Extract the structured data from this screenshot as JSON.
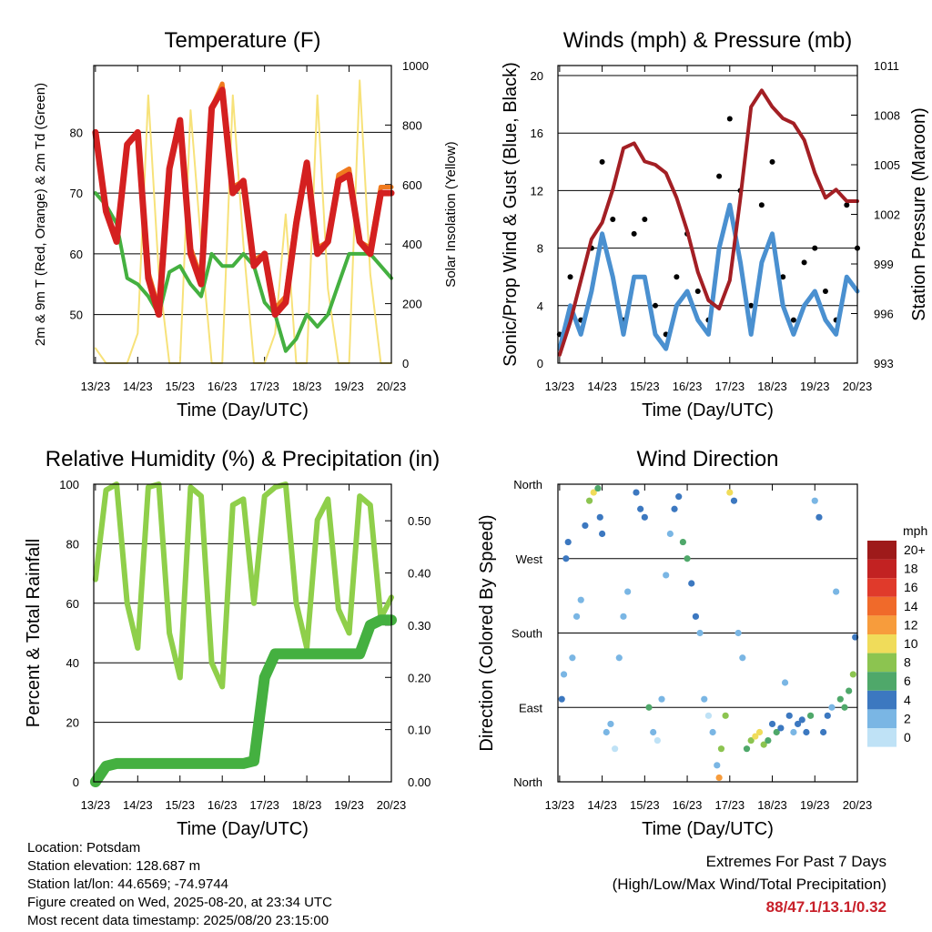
{
  "colors": {
    "temp_2m": "#d42020",
    "temp_9m": "#f07a1e",
    "dewpoint": "#44b040",
    "solar": "#f7e27a",
    "gust": "#000000",
    "wind": "#4a90d0",
    "pressure": "#a31f24",
    "rh": "#8fcf4a",
    "rain": "#44b040",
    "extremes": "#c8202a"
  },
  "footer": {
    "location": "Location: Potsdam",
    "elevation": "Station elevation: 128.687 m",
    "latlon": "Station lat/lon: 44.6569; -74.9744",
    "created": "Figure created on Wed, 2025-08-20, at 23:34 UTC",
    "recent": "Most recent data timestamp: 2025/08/20 23:15:00",
    "extremes_title": "Extremes For Past 7 Days",
    "extremes_subtitle": "(High/Low/Max Wind/Total Precipitation)",
    "extremes_values": "88/47.1/13.1/0.32"
  },
  "chart_data": [
    {
      "type": "line",
      "title": "Temperature (F)",
      "xlabel": "Time (Day/UTC)",
      "ylabel": "2m & 9m T (Red, Orange) & 2m Td (Green)",
      "ylabel_right": "Solar Insolation (Yellow)",
      "x_ticks": [
        "13/23",
        "14/23",
        "15/23",
        "16/23",
        "17/23",
        "18/23",
        "19/23",
        "20/23"
      ],
      "y_ticks": [
        "50",
        "60",
        "70",
        "80"
      ],
      "y_right_ticks": [
        "0",
        "200",
        "400",
        "600",
        "800",
        "1000"
      ],
      "ylim": [
        42,
        91
      ],
      "y_right_lim": [
        0,
        1000
      ],
      "grid": true,
      "x": [
        13.0,
        13.25,
        13.5,
        13.75,
        14.0,
        14.25,
        14.5,
        14.75,
        15.0,
        15.25,
        15.5,
        15.75,
        16.0,
        16.25,
        16.5,
        16.75,
        17.0,
        17.25,
        17.5,
        17.75,
        18.0,
        18.25,
        18.5,
        18.75,
        19.0,
        19.25,
        19.5,
        19.75,
        20.0
      ],
      "series": [
        {
          "name": "2m T",
          "axis": "left",
          "values": [
            80,
            67,
            62,
            78,
            80,
            56,
            50,
            74,
            82,
            60,
            55,
            84,
            87,
            70,
            72,
            58,
            60,
            50,
            52,
            65,
            75,
            60,
            62,
            72,
            73,
            62,
            60,
            70,
            70
          ]
        },
        {
          "name": "9m T",
          "axis": "left",
          "values": [
            80,
            67,
            62,
            78,
            80,
            57,
            51,
            74,
            82,
            61,
            56,
            84,
            88,
            71,
            72,
            59,
            60,
            51,
            53,
            66,
            75,
            61,
            62,
            73,
            74,
            62,
            61,
            71,
            71
          ]
        },
        {
          "name": "2m Td",
          "axis": "left",
          "values": [
            70,
            68,
            65,
            56,
            55,
            53,
            50,
            57,
            58,
            55,
            53,
            60,
            58,
            58,
            60,
            58,
            52,
            50,
            44,
            46,
            50,
            48,
            50,
            55,
            60,
            60,
            60,
            58,
            56
          ]
        },
        {
          "name": "Solar",
          "axis": "right",
          "values": [
            50,
            0,
            0,
            0,
            100,
            900,
            300,
            0,
            0,
            850,
            400,
            0,
            0,
            900,
            400,
            0,
            0,
            100,
            500,
            0,
            0,
            900,
            250,
            0,
            0,
            950,
            300,
            0,
            0
          ]
        }
      ]
    },
    {
      "type": "line",
      "title": "Winds (mph) & Pressure (mb)",
      "xlabel": "Time (Day/UTC)",
      "ylabel": "Sonic/Prop Wind & Gust (Blue, Black)",
      "ylabel_right": "Station Pressure (Maroon)",
      "x_ticks": [
        "13/23",
        "14/23",
        "15/23",
        "16/23",
        "17/23",
        "18/23",
        "19/23",
        "20/23"
      ],
      "y_ticks": [
        "0",
        "4",
        "8",
        "12",
        "16",
        "20"
      ],
      "y_right_ticks": [
        "993",
        "996",
        "999",
        "1002",
        "1005",
        "1008",
        "1011"
      ],
      "ylim": [
        0,
        20.7
      ],
      "y_right_lim": [
        993,
        1011
      ],
      "grid": true,
      "x": [
        13.0,
        13.25,
        13.5,
        13.75,
        14.0,
        14.25,
        14.5,
        14.75,
        15.0,
        15.25,
        15.5,
        15.75,
        16.0,
        16.25,
        16.5,
        16.75,
        17.0,
        17.25,
        17.5,
        17.75,
        18.0,
        18.25,
        18.5,
        18.75,
        19.0,
        19.25,
        19.5,
        19.75,
        20.0
      ],
      "series": [
        {
          "name": "Gust",
          "axis": "left",
          "values": [
            2,
            6,
            3,
            8,
            14,
            10,
            3,
            9,
            10,
            4,
            2,
            6,
            9,
            5,
            3,
            13,
            17,
            12,
            4,
            11,
            14,
            6,
            3,
            7,
            8,
            5,
            3,
            11,
            8
          ]
        },
        {
          "name": "Wind",
          "axis": "left",
          "values": [
            1,
            4,
            2,
            5,
            9,
            6,
            2,
            6,
            6,
            2,
            1,
            4,
            5,
            3,
            2,
            8,
            11,
            7,
            2,
            7,
            9,
            4,
            2,
            4,
            5,
            3,
            2,
            6,
            5
          ]
        },
        {
          "name": "Pressure",
          "axis": "right",
          "values": [
            993.5,
            995.5,
            998,
            1000.5,
            1001.5,
            1003.5,
            1006,
            1006.3,
            1005.2,
            1005,
            1004.5,
            1003,
            1001,
            998.5,
            996.8,
            996.3,
            998,
            1003,
            1008.5,
            1009.5,
            1008.5,
            1007.8,
            1007.5,
            1006.5,
            1004.5,
            1003,
            1003.5,
            1002.8,
            1002.8
          ]
        }
      ]
    },
    {
      "type": "line",
      "title": "Relative Humidity (%) & Precipitation (in)",
      "xlabel": "Time (Day/UTC)",
      "ylabel": "Percent & Total Rainfall",
      "x_ticks": [
        "13/23",
        "14/23",
        "15/23",
        "16/23",
        "17/23",
        "18/23",
        "19/23",
        "20/23"
      ],
      "y_ticks": [
        "0",
        "20",
        "40",
        "60",
        "80",
        "100"
      ],
      "y_right_ticks": [
        "0.00",
        "0.10",
        "0.20",
        "0.30",
        "0.40",
        "0.50"
      ],
      "ylim": [
        0,
        100
      ],
      "y_right_lim": [
        0,
        0.57
      ],
      "grid": true,
      "x": [
        13.0,
        13.25,
        13.5,
        13.75,
        14.0,
        14.25,
        14.5,
        14.75,
        15.0,
        15.25,
        15.5,
        15.75,
        16.0,
        16.25,
        16.5,
        16.75,
        17.0,
        17.25,
        17.5,
        17.75,
        18.0,
        18.25,
        18.5,
        18.75,
        19.0,
        19.25,
        19.5,
        19.75,
        20.0
      ],
      "series": [
        {
          "name": "RH",
          "axis": "left",
          "values": [
            68,
            98,
            100,
            60,
            45,
            99,
            100,
            50,
            35,
            99,
            96,
            40,
            32,
            93,
            95,
            60,
            96,
            99,
            100,
            60,
            45,
            88,
            95,
            58,
            50,
            96,
            93,
            55,
            62
          ]
        },
        {
          "name": "Rain",
          "axis": "right",
          "values": [
            0,
            0.03,
            0.035,
            0.035,
            0.035,
            0.035,
            0.035,
            0.035,
            0.035,
            0.035,
            0.035,
            0.035,
            0.035,
            0.035,
            0.035,
            0.04,
            0.2,
            0.245,
            0.245,
            0.245,
            0.245,
            0.245,
            0.245,
            0.245,
            0.245,
            0.245,
            0.3,
            0.31,
            0.31
          ]
        }
      ]
    },
    {
      "type": "scatter",
      "title": "Wind Direction",
      "xlabel": "Time (Day/UTC)",
      "ylabel": "Direction (Colored By Speed)",
      "x_ticks": [
        "13/23",
        "14/23",
        "15/23",
        "16/23",
        "17/23",
        "18/23",
        "19/23",
        "20/23"
      ],
      "y_ticks": [
        "North",
        "East",
        "South",
        "West",
        "North"
      ],
      "ylim": [
        0,
        360
      ],
      "grid": true,
      "colorbar": {
        "unit": "mph",
        "labels": [
          "20+",
          "18",
          "16",
          "14",
          "12",
          "10",
          "8",
          "6",
          "4",
          "2",
          "0"
        ],
        "colors": [
          "#9e1a1a",
          "#c22222",
          "#e03a2b",
          "#f06a2a",
          "#f79c3c",
          "#f0dc5a",
          "#8cc450",
          "#4fa86a",
          "#3c78c0",
          "#7ab6e4",
          "#bfe2f6"
        ]
      },
      "points": [
        [
          13.05,
          100
        ],
        [
          13.1,
          130
        ],
        [
          13.15,
          270
        ],
        [
          13.2,
          290
        ],
        [
          13.3,
          150
        ],
        [
          13.4,
          200
        ],
        [
          13.5,
          220
        ],
        [
          13.6,
          310
        ],
        [
          13.7,
          340
        ],
        [
          13.8,
          350
        ],
        [
          13.9,
          355
        ],
        [
          13.95,
          320
        ],
        [
          14.0,
          300
        ],
        [
          14.1,
          60
        ],
        [
          14.2,
          70
        ],
        [
          14.3,
          40
        ],
        [
          14.4,
          150
        ],
        [
          14.5,
          200
        ],
        [
          14.6,
          230
        ],
        [
          14.8,
          350
        ],
        [
          14.9,
          330
        ],
        [
          15.0,
          320
        ],
        [
          15.1,
          90
        ],
        [
          15.2,
          60
        ],
        [
          15.3,
          50
        ],
        [
          15.4,
          100
        ],
        [
          15.5,
          250
        ],
        [
          15.6,
          300
        ],
        [
          15.7,
          330
        ],
        [
          15.8,
          345
        ],
        [
          15.9,
          290
        ],
        [
          16.0,
          270
        ],
        [
          16.1,
          240
        ],
        [
          16.2,
          200
        ],
        [
          16.3,
          180
        ],
        [
          16.4,
          100
        ],
        [
          16.5,
          80
        ],
        [
          16.6,
          60
        ],
        [
          16.7,
          20
        ],
        [
          16.75,
          5
        ],
        [
          16.8,
          40
        ],
        [
          16.9,
          80
        ],
        [
          17.0,
          350
        ],
        [
          17.1,
          340
        ],
        [
          17.2,
          180
        ],
        [
          17.3,
          150
        ],
        [
          17.4,
          40
        ],
        [
          17.5,
          50
        ],
        [
          17.6,
          55
        ],
        [
          17.7,
          60
        ],
        [
          17.8,
          45
        ],
        [
          17.9,
          50
        ],
        [
          18.0,
          70
        ],
        [
          18.1,
          60
        ],
        [
          18.2,
          65
        ],
        [
          18.3,
          120
        ],
        [
          18.4,
          80
        ],
        [
          18.5,
          60
        ],
        [
          18.6,
          70
        ],
        [
          18.7,
          75
        ],
        [
          18.8,
          60
        ],
        [
          18.9,
          80
        ],
        [
          19.0,
          340
        ],
        [
          19.1,
          320
        ],
        [
          19.2,
          60
        ],
        [
          19.3,
          80
        ],
        [
          19.4,
          90
        ],
        [
          19.5,
          230
        ],
        [
          19.6,
          100
        ],
        [
          19.7,
          90
        ],
        [
          19.8,
          110
        ],
        [
          19.9,
          130
        ],
        [
          19.95,
          175
        ]
      ],
      "point_speeds": [
        3,
        2,
        4,
        3,
        2,
        1,
        2,
        3,
        8,
        10,
        6,
        4,
        3,
        2,
        1,
        0,
        1,
        1,
        2,
        3,
        3,
        4,
        6,
        1,
        0,
        1,
        1,
        2,
        3,
        4,
        5,
        5,
        4,
        3,
        2,
        1,
        0,
        1,
        2,
        12,
        8,
        7,
        10,
        4,
        1,
        1,
        5,
        8,
        9,
        10,
        7,
        6,
        4,
        5,
        3,
        2,
        3,
        2,
        3,
        4,
        4,
        5,
        2,
        3,
        4,
        3,
        2,
        1,
        5,
        5,
        6,
        7,
        4
      ]
    }
  ]
}
